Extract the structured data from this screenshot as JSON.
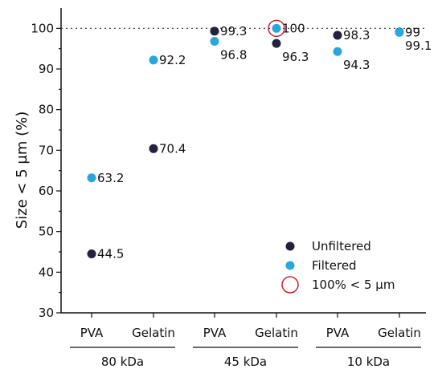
{
  "chart_data": {
    "type": "scatter",
    "ylabel": "Size < 5 µm (%)",
    "ylim": [
      30,
      105
    ],
    "yticks": [
      30,
      40,
      50,
      60,
      70,
      80,
      90,
      100
    ],
    "reference_line": {
      "y": 100,
      "style": "dotted"
    },
    "categories": [
      "PVA",
      "Gelatin",
      "PVA",
      "Gelatin",
      "PVA",
      "Gelatin"
    ],
    "groups": [
      {
        "label": "80 kDa",
        "categories": [
          0,
          1
        ]
      },
      {
        "label": "45 kDa",
        "categories": [
          2,
          3
        ]
      },
      {
        "label": "10 kDa",
        "categories": [
          4,
          5
        ]
      }
    ],
    "series": [
      {
        "name": "Unfiltered",
        "color": "#23223f",
        "values": [
          44.5,
          70.4,
          99.3,
          96.3,
          98.3,
          99.1
        ],
        "labels": [
          "44.5",
          "70.4",
          "99.3",
          "96.3",
          "98.3",
          "99.1"
        ],
        "label_side": [
          "right",
          "right",
          "right",
          "below",
          "right",
          "below"
        ]
      },
      {
        "name": "Filtered",
        "color": "#29a7dd",
        "values": [
          63.2,
          92.2,
          96.8,
          100,
          94.3,
          99
        ],
        "labels": [
          "63.2",
          "92.2",
          "96.8",
          "100",
          "94.3",
          "99"
        ],
        "label_side": [
          "right",
          "right",
          "below",
          "right",
          "below",
          "right"
        ]
      }
    ],
    "highlight": {
      "name": "100% < 5 µm",
      "color": "#c8262e",
      "category": 3,
      "value": 100
    },
    "legend": {
      "position": "bottom-right",
      "entries": [
        "Unfiltered",
        "Filtered",
        "100% < 5 µm"
      ]
    },
    "grid": false
  }
}
